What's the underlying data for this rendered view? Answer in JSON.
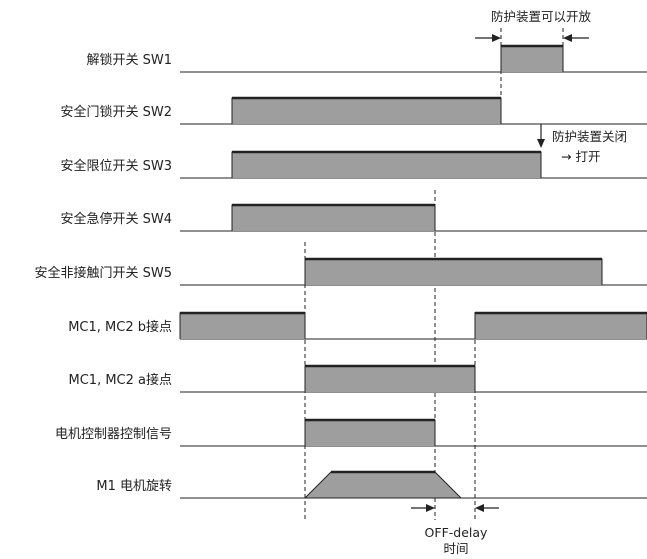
{
  "diagram": {
    "annotations": {
      "open_allowed": "防护装置可以开放",
      "closed_to_open_line1": "防护装置关闭",
      "closed_to_open_line2": "→ 打开",
      "off_delay_line1": "OFF-delay",
      "off_delay_line2": "时间"
    },
    "colors": {
      "pulse_fill": "#9e9e9e",
      "line": "#222222",
      "background": "#ffffff"
    },
    "signals": [
      {
        "id": "sw1",
        "label": "解锁开关  SW1",
        "shape": "pulse"
      },
      {
        "id": "sw2",
        "label": "安全门锁开关  SW2",
        "shape": "pulse"
      },
      {
        "id": "sw3",
        "label": "安全限位开关  SW3",
        "shape": "pulse"
      },
      {
        "id": "sw4",
        "label": "安全急停开关  SW4",
        "shape": "pulse"
      },
      {
        "id": "sw5",
        "label": "安全非接触门开关  SW5",
        "shape": "pulse"
      },
      {
        "id": "mcb",
        "label": "MC1, MC2 b接点",
        "shape": "pulse"
      },
      {
        "id": "mca",
        "label": "MC1, MC2 a接点",
        "shape": "pulse"
      },
      {
        "id": "ctrl",
        "label": "电机控制器控制信号",
        "shape": "pulse"
      },
      {
        "id": "m1",
        "label": "M1 电机旋转",
        "shape": "trapezoid"
      }
    ]
  }
}
